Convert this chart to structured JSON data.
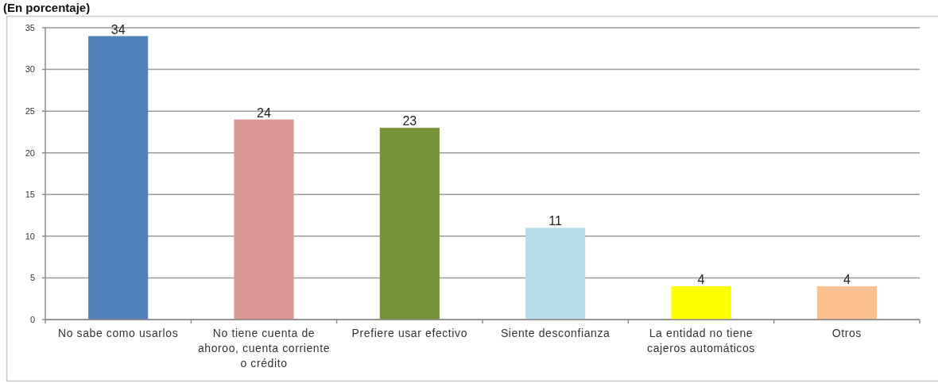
{
  "chart_data": {
    "type": "bar",
    "title": "(En porcentaje)",
    "categories": [
      "No sabe como usarlos",
      "No tiene cuenta de ahoroo, cuenta corriente o crédito",
      "Prefiere usar efectivo",
      "Siente desconfianza",
      "La entidad no tiene cajeros automáticos",
      "Otros"
    ],
    "values": [
      34,
      24,
      23,
      11,
      4,
      4
    ],
    "colors": [
      "#4f81bd",
      "#d99694",
      "#77933c",
      "#b7dee8",
      "#ffff00",
      "#fac090"
    ],
    "ylim": [
      0,
      35
    ],
    "yticks": [
      0,
      5,
      10,
      15,
      20,
      25,
      30,
      35
    ],
    "grid": true,
    "data_labels": true
  }
}
